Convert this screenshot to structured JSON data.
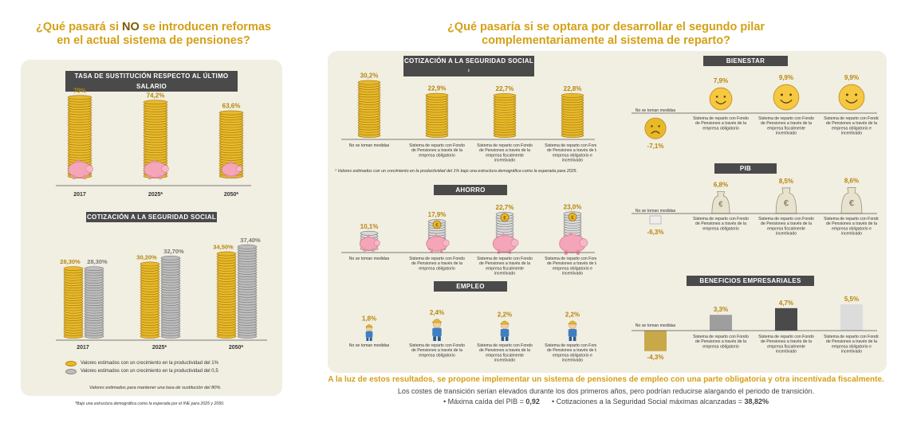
{
  "left": {
    "title_pre": "¿Qué pasará si ",
    "title_bold": "NO",
    "title_post_line1": " se introducen reformas",
    "title_line2": "en el actual sistema de pensiones?",
    "section1_title": "TASA DE SUSTITUCIÓN RESPECTO AL ÚLTIMO SALARIO",
    "section2_title": "COTIZACIÓN A LA SEGURIDAD SOCIAL",
    "legend": [
      {
        "label": "Valores estimados con un crecimiento en  la productividad del 1%",
        "color": "#e8b92a"
      },
      {
        "label": "Valores estimados con un crecimiento en  la productividad del 0,5",
        "color": "#bdbdbd"
      }
    ],
    "note1": "Valores estimados para mantener una tasa de sustitución del 80%.",
    "note2": "*Bajo una estructura demográfica como la esperada por el INE para 2025 y 2050."
  },
  "right": {
    "title_line1": "¿Qué pasaría si se optara por  desarrollar el segundo pilar",
    "title_line2": "complementariamente  al sistema de reparto?",
    "cot_title": "COTIZACIÓN A LA SEGURIDAD SOCIAL ¹",
    "cot_note": "¹ Valores estimados con un crecimiento en  la productividad del 1% bajo una estructura demográfica como la esperada para 2025.",
    "ahorro_title": "AHORRO",
    "empleo_title": "EMPLEO",
    "bienestar_title": "BIENESTAR",
    "pib_title": "PIB",
    "benef_title": "BENEFICIOS EMPRESARIALES",
    "scenarios": [
      "No se toman medidas",
      "Sistema de reparto con Fondo de Pensiones a través de la empresa obligatorio",
      "Sistema de reparto con Fondo de Pensiones a través de la empresa fiscalmente incentivado",
      "Sistema de reparto con Fondo de Pensiones a través de la empresa obligatorio e incentivado"
    ]
  },
  "bottom": {
    "line1": "A la luz de estos resultados, se propone implementar un sistema de pensiones de empleo con una parte obligatoria y otra incentivada fiscalmente.",
    "line2": "Los costes de transición serían elevados durante los dos primeros años, pero podrían reducirse alargando el periodo de transición.",
    "bullet1_label": "• Máxima caída del PIB = ",
    "bullet1_value": "0,92",
    "bullet2_label": "• Cotizaciones a la Seguridad Social máximas alcanzadas = ",
    "bullet2_value": "38,82%"
  },
  "chart_data": [
    {
      "type": "bar",
      "title": "TASA DE SUSTITUCIÓN RESPECTO AL ÚLTIMO SALARIO",
      "categories": [
        "2017",
        "2025*",
        "2050*"
      ],
      "values": [
        79,
        74.2,
        63.6
      ],
      "labels": [
        "79%",
        "74,2%",
        "63,6%"
      ]
    },
    {
      "type": "bar",
      "title": "COTIZACIÓN A LA SEGURIDAD SOCIAL",
      "categories": [
        "2017",
        "2025*",
        "2050*"
      ],
      "series": [
        {
          "name": "Valores estimados con un crecimiento en  la productividad del 1%",
          "values": [
            28.3,
            30.2,
            34.5
          ],
          "labels": [
            "28,30%",
            "30,20%",
            "34,50%"
          ],
          "color": "#e8b92a"
        },
        {
          "name": "Valores estimados con un crecimiento en  la productividad del 0,5",
          "values": [
            28.3,
            32.7,
            37.4
          ],
          "labels": [
            "28,30%",
            "32,70%",
            "37,40%"
          ],
          "color": "#bdbdbd"
        }
      ]
    },
    {
      "type": "bar",
      "title": "COTIZACIÓN A LA SEGURIDAD SOCIAL ¹",
      "categories": [
        "No se toman medidas",
        "Sistema de reparto con Fondo de Pensiones a través de la empresa obligatorio",
        "Sistema de reparto con Fondo de Pensiones a través de la empresa fiscalmente incentivado",
        "Sistema de reparto con Fondo de Pensiones a través de la empresa obligatorio e incentivado"
      ],
      "values": [
        30.2,
        22.9,
        22.7,
        22.8
      ],
      "labels": [
        "30,2%",
        "22,9%",
        "22,7%",
        "22,8%"
      ]
    },
    {
      "type": "bar",
      "title": "AHORRO",
      "categories": [
        "No se toman medidas",
        "Sistema de reparto con Fondo de Pensiones a través de la empresa obligatorio",
        "Sistema de reparto con Fondo de Pensiones a través de la empresa fiscalmente incentivado",
        "Sistema de reparto con Fondo de Pensiones a través de la empresa obligatorio e incentivado"
      ],
      "values": [
        10.1,
        17.9,
        22.7,
        23.0
      ],
      "labels": [
        "10,1%",
        "17,9%",
        "22,7%",
        "23,0%"
      ]
    },
    {
      "type": "bar",
      "title": "EMPLEO",
      "categories": [
        "No se toman medidas",
        "Sistema de reparto con Fondo de Pensiones a través de la empresa obligatorio",
        "Sistema de reparto con Fondo de Pensiones a través de la empresa fiscalmente incentivado",
        "Sistema de reparto con Fondo de Pensiones a través de la empresa obligatorio e incentivado"
      ],
      "values": [
        1.8,
        2.4,
        2.2,
        2.2
      ],
      "labels": [
        "1,8%",
        "2,4%",
        "2,2%",
        "2,2%"
      ]
    },
    {
      "type": "bar",
      "title": "BIENESTAR",
      "categories": [
        "No se toman medidas",
        "Sistema de reparto con Fondo de Pensiones a través de la empresa obligatorio",
        "Sistema de reparto con Fondo de Pensiones a través de la empresa fiscalmente incentivado",
        "Sistema de reparto con Fondo de Pensiones a través de la empresa obligatorio e incentivado"
      ],
      "values": [
        -7.1,
        7.9,
        9.9,
        9.9
      ],
      "labels": [
        "-7,1%",
        "7,9%",
        "9,9%",
        "9,9%"
      ]
    },
    {
      "type": "bar",
      "title": "PIB",
      "categories": [
        "No se toman medidas",
        "Sistema de reparto con Fondo de Pensiones a través de la empresa obligatorio",
        "Sistema de reparto con Fondo de Pensiones a través de la empresa fiscalmente incentivado",
        "Sistema de reparto con Fondo de Pensiones a través de la empresa obligatorio e incentivado"
      ],
      "values": [
        -6.3,
        6.8,
        8.5,
        8.6
      ],
      "labels": [
        "-6,3%",
        "6,8%",
        "8,5%",
        "8,6%"
      ]
    },
    {
      "type": "bar",
      "title": "BENEFICIOS EMPRESARIALES",
      "categories": [
        "No se toman medidas",
        "Sistema de reparto con Fondo de Pensiones a través de la empresa obligatorio",
        "Sistema de reparto con Fondo de Pensiones a través de la empresa fiscalmente incentivado",
        "Sistema de reparto con Fondo de Pensiones a través de la empresa obligatorio e incentivado"
      ],
      "values": [
        -4.3,
        3.3,
        4.7,
        5.5
      ],
      "labels": [
        "-4,3%",
        "3,3%",
        "4,7%",
        "5,5%"
      ],
      "colors": [
        "#c9a84a",
        "#9e9e9e",
        "#4a4a4a",
        "#dcdcdc"
      ]
    }
  ]
}
